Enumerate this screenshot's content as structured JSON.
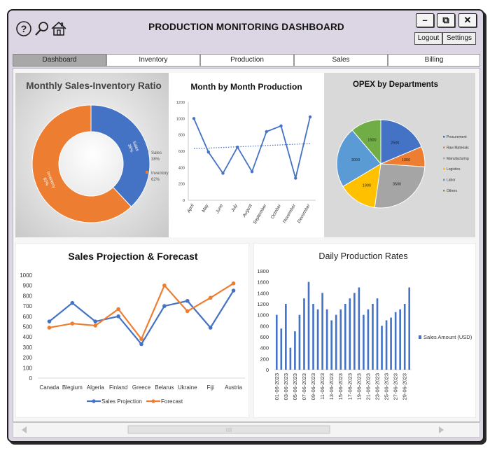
{
  "window": {
    "title": "PRODUCTION MONITORING DASHBOARD",
    "buttons": {
      "minimize": "–",
      "restore": "⧉",
      "close": "✕"
    },
    "logout_label": "Logout",
    "settings_label": "Settings"
  },
  "toolbar_icons": [
    "help-icon",
    "search-icon",
    "home-icon"
  ],
  "tabs": [
    {
      "label": "Dashboard",
      "active": true
    },
    {
      "label": "Inventory",
      "active": false
    },
    {
      "label": "Production",
      "active": false
    },
    {
      "label": "Sales",
      "active": false
    },
    {
      "label": "Billing",
      "active": false
    }
  ],
  "chart_data": [
    {
      "type": "pie",
      "variant": "donut",
      "title": "Monthly Sales-Inventory Ratio",
      "slices": [
        {
          "label": "Sales",
          "value": 38,
          "display": "38%",
          "color": "#4472c4"
        },
        {
          "label": "Inventory",
          "value": 62,
          "display": "62%",
          "color": "#ed7d31"
        }
      ],
      "legend_position": "right"
    },
    {
      "type": "line",
      "title": "Month by Month Production",
      "categories": [
        "April",
        "May",
        "June",
        "July",
        "August",
        "September",
        "October",
        "November",
        "December"
      ],
      "values": [
        1000,
        590,
        330,
        650,
        350,
        840,
        910,
        270,
        1020
      ],
      "trendline": true,
      "ylim": [
        0,
        1200
      ],
      "yticks": [
        0,
        200,
        400,
        600,
        800,
        1000,
        1200
      ],
      "grid": false
    },
    {
      "type": "pie",
      "title": "OPEX by Departments",
      "slices": [
        {
          "label": "Procurement",
          "value": 2500,
          "color": "#4472c4"
        },
        {
          "label": "Raw Materials",
          "value": 1000,
          "color": "#ed7d31"
        },
        {
          "label": "Manufacturing",
          "value": 3500,
          "color": "#a5a5a5"
        },
        {
          "label": "Logistics",
          "value": 1900,
          "color": "#ffc000"
        },
        {
          "label": "Labor",
          "value": 3000,
          "color": "#5b9bd5"
        },
        {
          "label": "Others",
          "value": 1500,
          "color": "#70ad47"
        }
      ],
      "legend_position": "right"
    },
    {
      "type": "line",
      "title": "Sales Projection & Forecast",
      "categories": [
        "Canada",
        "Blegium",
        "Algeria",
        "Finland",
        "Greece",
        "Belarus",
        "Ukraine",
        "Fiji",
        "Austria"
      ],
      "series": [
        {
          "name": "Sales Projection",
          "values": [
            550,
            730,
            550,
            600,
            330,
            700,
            750,
            490,
            850
          ],
          "color": "#4472c4"
        },
        {
          "name": "Forecast",
          "values": [
            490,
            530,
            510,
            670,
            380,
            900,
            650,
            780,
            920
          ],
          "color": "#ed7d31"
        }
      ],
      "ylim": [
        0,
        1000
      ],
      "yticks": [
        0,
        100,
        200,
        300,
        400,
        500,
        600,
        700,
        800,
        900,
        1000
      ],
      "legend_position": "bottom"
    },
    {
      "type": "bar",
      "title": "Daily Production Rates",
      "series_name": "Sales Amount (USD)",
      "categories": [
        "01-06-2023",
        "02-06-2023",
        "03-06-2023",
        "04-06-2023",
        "05-06-2023",
        "06-06-2023",
        "07-06-2023",
        "08-06-2023",
        "09-06-2023",
        "10-06-2023",
        "11-06-2023",
        "12-06-2023",
        "13-06-2023",
        "14-06-2023",
        "15-06-2023",
        "16-06-2023",
        "17-06-2023",
        "18-06-2023",
        "19-06-2023",
        "20-06-2023",
        "21-06-2023",
        "22-06-2023",
        "23-06-2023",
        "24-06-2023",
        "25-06-2023",
        "26-06-2023",
        "27-06-2023",
        "28-06-2023",
        "29-06-2023",
        "30-06-2023"
      ],
      "visible_tick_labels": [
        "01-06-2023",
        "03-06-2023",
        "05-06-2023",
        "07-06-2023",
        "09-06-2023",
        "11-06-2023",
        "13-06-2023",
        "15-06-2023",
        "17-06-2023",
        "19-06-2023",
        "21-06-2023",
        "23-06-2023",
        "25-06-2023",
        "27-06-2023",
        "29-06-2023"
      ],
      "values": [
        1000,
        750,
        1200,
        400,
        700,
        1000,
        1300,
        1600,
        1200,
        1100,
        1400,
        1100,
        900,
        1000,
        1100,
        1200,
        1300,
        1400,
        1500,
        1000,
        1100,
        1200,
        1300,
        800,
        900,
        950,
        1050,
        1100,
        1200,
        1500
      ],
      "color": "#4472c4",
      "ylim": [
        0,
        1800
      ],
      "yticks": [
        0,
        200,
        400,
        600,
        800,
        1000,
        1200,
        1400,
        1600,
        1800
      ],
      "legend_position": "right"
    }
  ]
}
